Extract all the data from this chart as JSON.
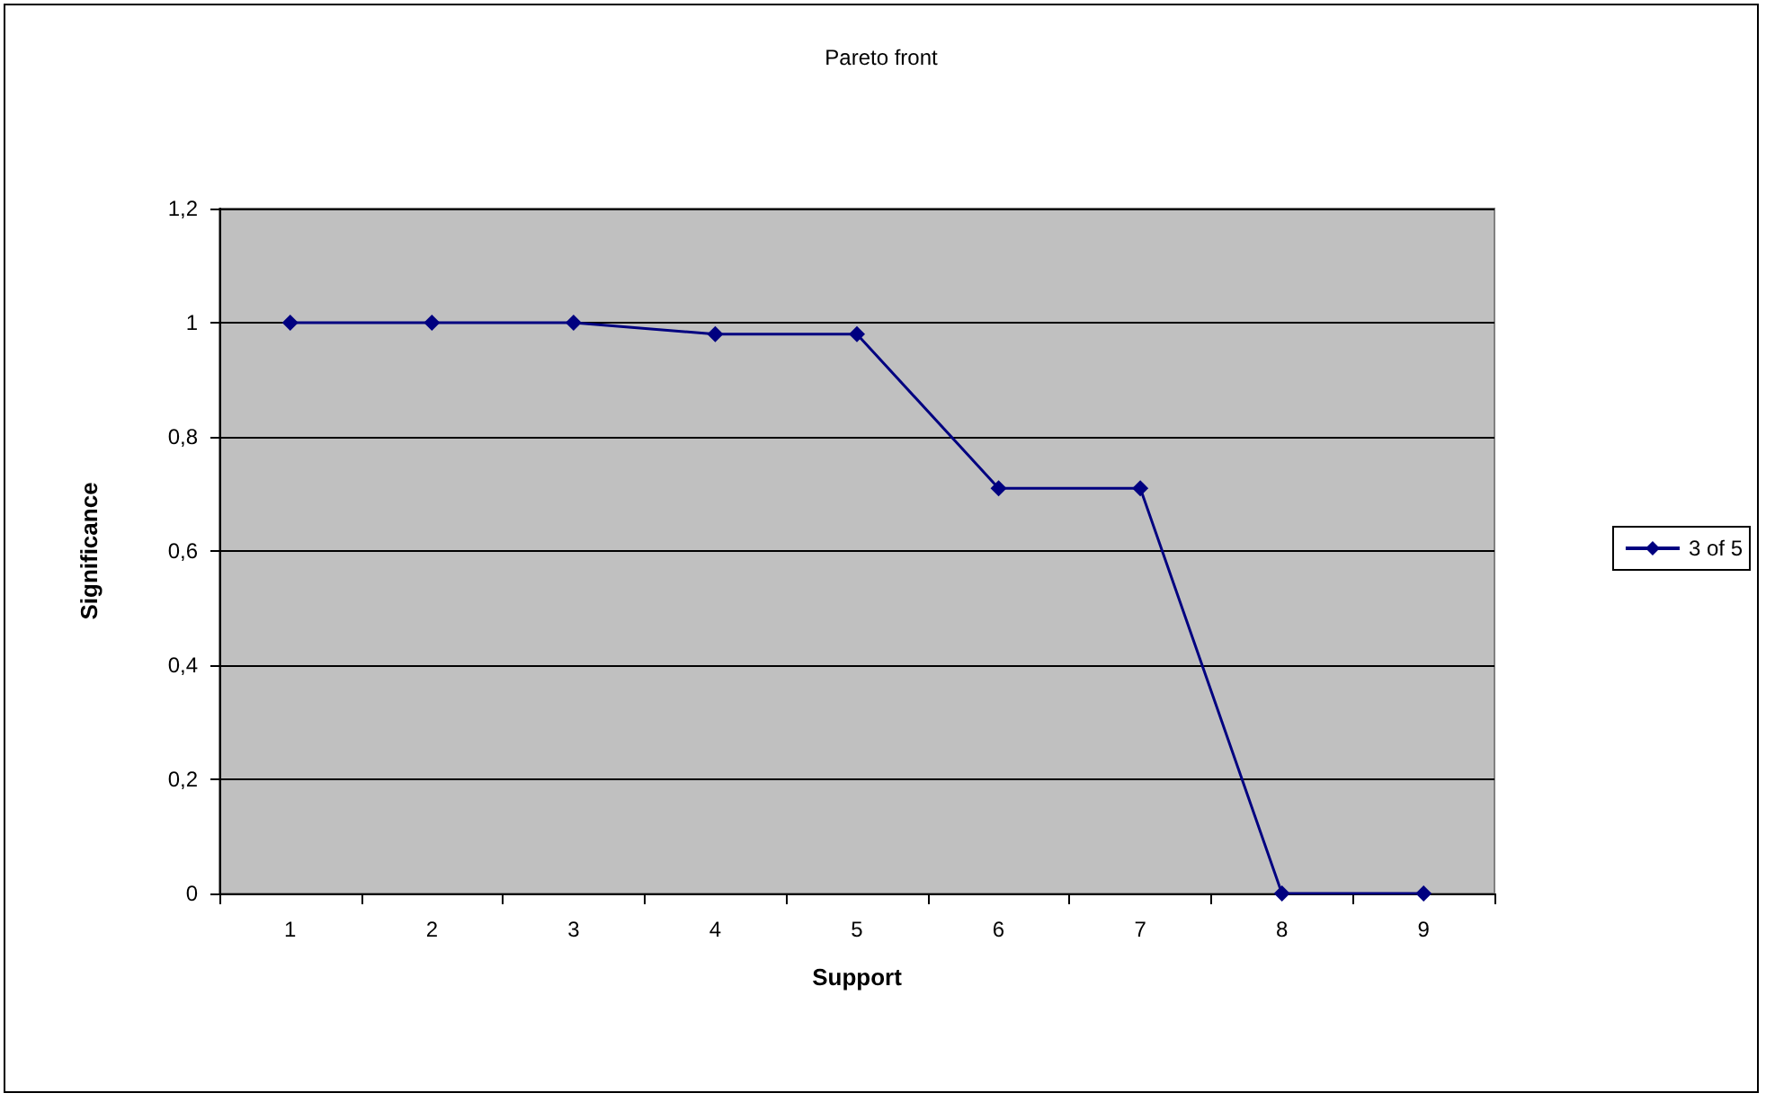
{
  "chart_data": {
    "type": "line",
    "title": "Pareto front",
    "xlabel": "Support",
    "ylabel": "Significance",
    "categories": [
      "1",
      "2",
      "3",
      "4",
      "5",
      "6",
      "7",
      "8",
      "9"
    ],
    "series": [
      {
        "name": "3 of 5",
        "color": "#000080",
        "values": [
          1,
          1,
          1,
          0.98,
          0.98,
          0.71,
          0.71,
          0,
          0
        ]
      }
    ],
    "ylim": [
      0,
      1.2
    ],
    "yticks": [
      0,
      {
        "value": 0.2,
        "label": "0,2"
      },
      {
        "value": 0.4,
        "label": "0,4"
      },
      {
        "value": 0.6,
        "label": "0,6"
      },
      {
        "value": 0.8,
        "label": "0,8"
      },
      1,
      {
        "value": 1.2,
        "label": "1,2"
      }
    ],
    "grid": "y",
    "legend": "right",
    "marker": "diamond",
    "line_style": "solid"
  }
}
